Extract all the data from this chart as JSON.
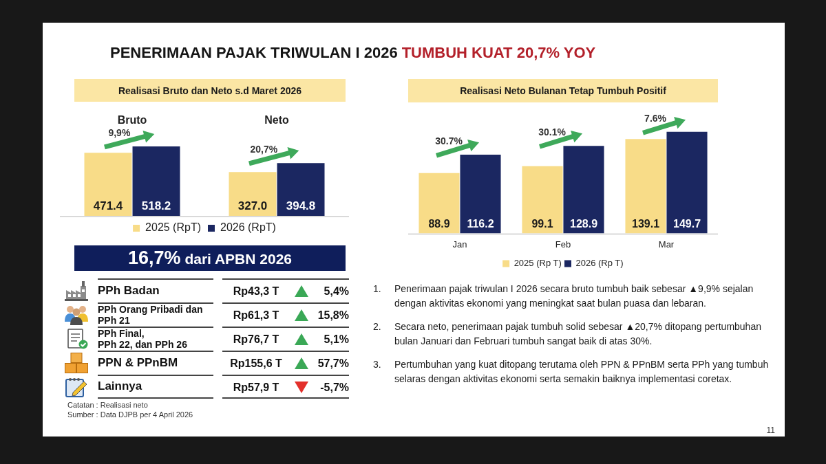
{
  "chart_data": [
    {
      "type": "other",
      "title": "PENERIMAAN PAJAK TRIWULAN I 2026",
      "subtitle": "TUMBUH KUAT 20,7% YOY",
      "annotations": [
        "11"
      ]
    },
    {
      "type": "bar",
      "title": "Realisasi Bruto dan Neto s.d Maret 2026",
      "categories": [
        "Bruto",
        "Neto"
      ],
      "series": [
        {
          "name": "2025 (RpT)",
          "color": "#f8dc88",
          "values": [
            471.4,
            327.0
          ],
          "value_labels": [
            "471.4",
            "327.0"
          ]
        },
        {
          "name": "2026 (RpT)",
          "color": "#1b2761",
          "values": [
            518.2,
            394.8
          ],
          "value_labels": [
            "518.2",
            "394.8"
          ]
        }
      ],
      "legend": "bottom",
      "tick_labels": "x",
      "annotations": [
        "9,9%",
        "20,7%"
      ]
    },
    {
      "type": "bar",
      "title": "Realisasi Neto Bulanan Tetap Tumbuh Positif",
      "categories": [
        "Jan",
        "Feb",
        "Mar"
      ],
      "series": [
        {
          "name": "2025 (Rp T)",
          "color": "#f8dc88",
          "values": [
            88.9,
            99.1,
            139.1
          ]
        },
        {
          "name": "2026 (Rp T)",
          "color": "#1b2761",
          "values": [
            116.2,
            128.9,
            149.7
          ]
        }
      ],
      "data_labels": true,
      "legend": "bottom",
      "tick_labels": "x",
      "annotations": [
        "30.7%",
        "30.1%",
        "7.6%"
      ]
    },
    {
      "type": "other",
      "title": "16,7% dari APBN 2026",
      "categories": [
        "PPh Badan",
        "PPh Orang Pribadi dan\nPPh 21",
        "PPh Final,\nPPh 22, dan PPh 26",
        "PPN & PPnBM",
        "Lainnya"
      ],
      "y2_categories": [
        "Rp43,3 T",
        "Rp61,3 T",
        "Rp76,7 T",
        "Rp155,6 T",
        "Rp57,9 T"
      ],
      "series": [
        {
          "values": [
            5.4,
            15.8,
            5.1,
            57.7,
            -5.7
          ],
          "value_labels": [
            "5,4%",
            "15,8%",
            "5,1%",
            "57,7%",
            "-5,7%"
          ],
          "colors": [
            "#3aa856",
            "#3aa856",
            "#3aa856",
            "#3aa856",
            "#e3302b"
          ]
        }
      ],
      "annotations": [
        "Catatan : Realisasi neto",
        "Sumber : Data DJPB per 4 April 2026"
      ]
    },
    {
      "type": "other",
      "annotations": [
        "1. Penerimaan pajak triwulan I 2026 secara bruto tumbuh baik sebesar ▲9,9% sejalan dengan aktivitas ekonomi yang meningkat saat bulan puasa dan lebaran.",
        "2. Secara neto, penerimaan pajak tumbuh solid sebesar ▲20,7%  ditopang pertumbuhan bulan Januari dan Februari tumbuh sangat baik di atas 30%.",
        "3. Pertumbuhan yang kuat ditopang terutama oleh PPN & PPnBM serta PPh yang tumbuh selaras dengan aktivitas ekonomi serta semakin baiknya implementasi coretax."
      ]
    }
  ]
}
